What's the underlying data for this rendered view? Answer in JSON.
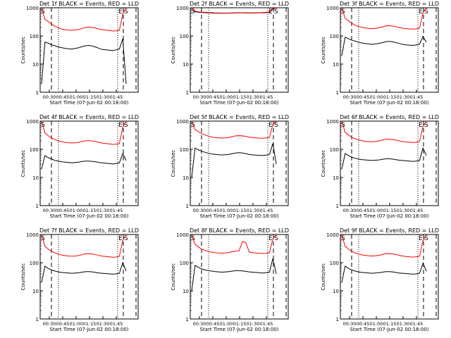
{
  "figure": {
    "panel_title_template": "Det {det} BLACK = Events, RED = LLD",
    "xlabel": "Start Time (07-Jun-02 00:18:00)",
    "ylabel": "Counts/sec"
  },
  "chart_data": [
    {
      "type": "line",
      "title": "Det 1f BLACK = Events, RED = LLD",
      "det": "1f",
      "xlabel": "Start Time (07-Jun-02 00:18:00)",
      "ylabel": "Counts/sec",
      "yscale": "log",
      "ylim": [
        1,
        1000
      ],
      "xticks": [
        "00:30",
        "00:45",
        "01:00",
        "01:15",
        "01:30",
        "01:45"
      ],
      "yticks": [
        "1",
        "10",
        "100",
        "1000"
      ],
      "markers": [
        {
          "label": "S",
          "pos": "left"
        },
        {
          "label": "E",
          "pos": "right"
        },
        {
          "label": "S",
          "pos": "right"
        }
      ],
      "series": [
        {
          "name": "Events",
          "color": "#000000",
          "values": [
            2,
            60,
            55,
            48,
            45,
            40,
            38,
            36,
            35,
            34,
            36,
            38,
            42,
            45,
            46,
            44,
            40,
            36,
            33,
            32,
            31,
            30,
            32,
            34,
            80,
            2
          ]
        },
        {
          "name": "LLD",
          "color": "#ff0000",
          "values": [
            1000,
            380,
            320,
            260,
            220,
            190,
            175,
            165,
            160,
            158,
            162,
            170,
            185,
            200,
            205,
            200,
            190,
            175,
            165,
            160,
            155,
            150,
            152,
            160,
            600,
            1000
          ]
        }
      ]
    },
    {
      "type": "line",
      "title": "Det 2f BLACK = Events, RED = LLD",
      "det": "2f",
      "xlabel": "Start Time (07-Jun-02 00:18:00)",
      "ylabel": "Counts/sec",
      "yscale": "log",
      "ylim": [
        1,
        1000
      ],
      "xticks": [
        "00:30",
        "00:45",
        "01:00",
        "01:15",
        "01:30",
        "01:45"
      ],
      "yticks": [
        "1",
        "10",
        "100",
        "1000"
      ],
      "markers": [
        {
          "label": "S",
          "pos": "left"
        },
        {
          "label": "E",
          "pos": "right"
        },
        {
          "label": "S",
          "pos": "right"
        }
      ],
      "series": [
        {
          "name": "Events",
          "color": "#000000",
          "values": [
            1000,
            720,
            690,
            680,
            670,
            660,
            650,
            645,
            640,
            640,
            640,
            645,
            650,
            655,
            660,
            660,
            655,
            650,
            650,
            655,
            660,
            665,
            670,
            680,
            900,
            1000
          ]
        },
        {
          "name": "LLD",
          "color": "#ff0000",
          "values": [
            1000,
            760,
            720,
            700,
            690,
            680,
            670,
            660,
            655,
            650,
            650,
            655,
            660,
            665,
            670,
            670,
            665,
            660,
            660,
            665,
            670,
            680,
            690,
            710,
            950,
            1000
          ]
        }
      ]
    },
    {
      "type": "line",
      "title": "Det 3f BLACK = Events, RED = LLD",
      "det": "3f",
      "xlabel": "Start Time (07-Jun-02 00:18:00)",
      "ylabel": "Counts/sec",
      "yscale": "log",
      "ylim": [
        1,
        1000
      ],
      "xticks": [
        "00:30",
        "00:45",
        "01:00",
        "01:15",
        "01:30",
        "01:45"
      ],
      "yticks": [
        "1",
        "10",
        "100",
        "1000"
      ],
      "markers": [
        {
          "label": "S",
          "pos": "left"
        },
        {
          "label": "E",
          "pos": "right"
        },
        {
          "label": "S",
          "pos": "right"
        }
      ],
      "series": [
        {
          "name": "Events",
          "color": "#000000",
          "values": [
            20,
            90,
            80,
            70,
            65,
            60,
            56,
            54,
            52,
            50,
            52,
            54,
            58,
            62,
            64,
            62,
            58,
            54,
            50,
            48,
            47,
            46,
            48,
            52,
            95,
            60
          ]
        },
        {
          "name": "LLD",
          "color": "#ff0000",
          "values": [
            1000,
            420,
            340,
            280,
            240,
            215,
            200,
            190,
            185,
            182,
            186,
            195,
            210,
            225,
            230,
            225,
            212,
            198,
            188,
            182,
            178,
            175,
            178,
            190,
            650,
            1000
          ]
        }
      ]
    },
    {
      "type": "line",
      "title": "Det 4f BLACK = Events, RED = LLD",
      "det": "4f",
      "xlabel": "Start Time (07-Jun-02 00:18:00)",
      "ylabel": "Counts/sec",
      "yscale": "log",
      "ylim": [
        1,
        1000
      ],
      "xticks": [
        "00:30",
        "00:45",
        "01:00",
        "01:15",
        "01:30",
        "01:45"
      ],
      "yticks": [
        "1",
        "10",
        "100",
        "1000"
      ],
      "markers": [
        {
          "label": "S",
          "pos": "left"
        },
        {
          "label": "E",
          "pos": "right"
        },
        {
          "label": "S",
          "pos": "right"
        }
      ],
      "series": [
        {
          "name": "Events",
          "color": "#000000",
          "values": [
            20,
            60,
            50,
            45,
            40,
            38,
            36,
            35,
            34,
            33,
            34,
            35,
            37,
            38,
            38,
            37,
            36,
            34,
            33,
            32,
            31,
            30,
            31,
            33,
            70,
            40
          ]
        },
        {
          "name": "LLD",
          "color": "#ff0000",
          "values": [
            1000,
            380,
            300,
            250,
            220,
            200,
            185,
            175,
            170,
            168,
            170,
            178,
            190,
            200,
            202,
            198,
            188,
            175,
            166,
            160,
            155,
            150,
            152,
            160,
            600,
            1000
          ]
        }
      ]
    },
    {
      "type": "line",
      "title": "Det 5f BLACK = Events, RED = LLD",
      "det": "5f",
      "xlabel": "Start Time (07-Jun-02 00:18:00)",
      "ylabel": "Counts/sec",
      "yscale": "log",
      "ylim": [
        1,
        1000
      ],
      "xticks": [
        "00:30",
        "00:45",
        "01:00",
        "01:15",
        "01:30",
        "01:45"
      ],
      "yticks": [
        "1",
        "10",
        "100",
        "1000"
      ],
      "markers": [
        {
          "label": "S",
          "pos": "left"
        },
        {
          "label": "E",
          "pos": "right"
        },
        {
          "label": "S",
          "pos": "right"
        }
      ],
      "series": [
        {
          "name": "Events",
          "color": "#000000",
          "values": [
            10,
            110,
            95,
            85,
            78,
            72,
            68,
            66,
            64,
            63,
            64,
            66,
            70,
            74,
            76,
            74,
            70,
            66,
            63,
            62,
            61,
            60,
            62,
            66,
            160,
            30
          ]
        },
        {
          "name": "LLD",
          "color": "#ff0000",
          "values": [
            1000,
            500,
            420,
            360,
            320,
            290,
            270,
            260,
            255,
            252,
            256,
            265,
            280,
            300,
            305,
            300,
            285,
            270,
            260,
            255,
            250,
            248,
            252,
            265,
            750,
            1000
          ]
        }
      ]
    },
    {
      "type": "line",
      "title": "Det 6f BLACK = Events, RED = LLD",
      "det": "6f",
      "xlabel": "Start Time (07-Jun-02 00:18:00)",
      "ylabel": "Counts/sec",
      "yscale": "log",
      "ylim": [
        1,
        1000
      ],
      "xticks": [
        "00:30",
        "00:45",
        "01:00",
        "01:15",
        "01:30",
        "01:45"
      ],
      "yticks": [
        "1",
        "10",
        "100",
        "1000"
      ],
      "markers": [
        {
          "label": "S",
          "pos": "left"
        },
        {
          "label": "E",
          "pos": "right"
        },
        {
          "label": "S",
          "pos": "right"
        }
      ],
      "series": [
        {
          "name": "Events",
          "color": "#000000",
          "values": [
            20,
            70,
            60,
            52,
            48,
            45,
            43,
            42,
            41,
            40,
            41,
            42,
            44,
            46,
            46,
            45,
            43,
            41,
            40,
            39,
            38,
            37,
            38,
            40,
            110,
            60
          ]
        },
        {
          "name": "LLD",
          "color": "#ff0000",
          "values": [
            1000,
            400,
            320,
            265,
            235,
            215,
            200,
            192,
            188,
            186,
            190,
            198,
            212,
            225,
            228,
            224,
            212,
            198,
            188,
            182,
            178,
            175,
            178,
            190,
            640,
            1000
          ]
        }
      ]
    },
    {
      "type": "line",
      "title": "Det 7f BLACK = Events, RED = LLD",
      "det": "7f",
      "xlabel": "Start Time (07-Jun-02 00:18:00)",
      "ylabel": "Counts/sec",
      "yscale": "log",
      "ylim": [
        1,
        1000
      ],
      "xticks": [
        "00:30",
        "00:45",
        "01:00",
        "01:15",
        "01:30",
        "01:45"
      ],
      "yticks": [
        "1",
        "10",
        "100",
        "1000"
      ],
      "markers": [
        {
          "label": "S",
          "pos": "left"
        },
        {
          "label": "E",
          "pos": "right"
        },
        {
          "label": "S",
          "pos": "right"
        }
      ],
      "series": [
        {
          "name": "Events",
          "color": "#000000",
          "values": [
            20,
            75,
            62,
            55,
            50,
            47,
            45,
            44,
            43,
            42,
            43,
            44,
            46,
            48,
            48,
            47,
            45,
            43,
            42,
            41,
            40,
            39,
            40,
            42,
            100,
            50
          ]
        },
        {
          "name": "LLD",
          "color": "#ff0000",
          "values": [
            1000,
            380,
            300,
            250,
            220,
            200,
            185,
            178,
            172,
            170,
            172,
            180,
            192,
            205,
            208,
            204,
            192,
            180,
            170,
            165,
            160,
            156,
            158,
            168,
            620,
            1000
          ]
        }
      ]
    },
    {
      "type": "line",
      "title": "Det 8f BLACK = Events, RED = LLD",
      "det": "8f",
      "xlabel": "Start Time (07-Jun-02 00:18:00)",
      "ylabel": "Counts/sec",
      "yscale": "log",
      "ylim": [
        1,
        1000
      ],
      "xticks": [
        "00:30",
        "00:45",
        "01:00",
        "01:15",
        "01:30",
        "01:45"
      ],
      "yticks": [
        "1",
        "10",
        "100",
        "1000"
      ],
      "markers": [
        {
          "label": "S",
          "pos": "left"
        },
        {
          "label": "E",
          "pos": "right"
        },
        {
          "label": "S",
          "pos": "right"
        }
      ],
      "series": [
        {
          "name": "Events",
          "color": "#000000",
          "values": [
            10,
            80,
            68,
            60,
            55,
            52,
            50,
            48,
            47,
            46,
            47,
            48,
            50,
            52,
            52,
            51,
            49,
            47,
            46,
            45,
            44,
            43,
            44,
            46,
            140,
            40
          ]
        },
        {
          "name": "LLD",
          "color": "#ff0000",
          "values": [
            1000,
            450,
            360,
            300,
            270,
            250,
            235,
            225,
            220,
            218,
            222,
            230,
            245,
            260,
            262,
            560,
            520,
            240,
            228,
            220,
            215,
            212,
            215,
            228,
            700,
            1000
          ]
        }
      ]
    },
    {
      "type": "line",
      "title": "Det 9f BLACK = Events, RED = LLD",
      "det": "9f",
      "xlabel": "Start Time (07-Jun-02 00:18:00)",
      "ylabel": "Counts/sec",
      "yscale": "log",
      "ylim": [
        1,
        1000
      ],
      "xticks": [
        "00:30",
        "00:45",
        "01:00",
        "01:15",
        "01:30",
        "01:45"
      ],
      "yticks": [
        "1",
        "10",
        "100",
        "1000"
      ],
      "markers": [
        {
          "label": "S",
          "pos": "left"
        },
        {
          "label": "E",
          "pos": "right"
        },
        {
          "label": "S",
          "pos": "right"
        }
      ],
      "series": [
        {
          "name": "Events",
          "color": "#000000",
          "values": [
            20,
            75,
            62,
            55,
            50,
            47,
            45,
            44,
            43,
            42,
            43,
            44,
            46,
            48,
            48,
            47,
            45,
            43,
            42,
            41,
            40,
            39,
            40,
            42,
            95,
            50
          ]
        },
        {
          "name": "LLD",
          "color": "#ff0000",
          "values": [
            1000,
            380,
            300,
            250,
            222,
            202,
            188,
            180,
            175,
            172,
            175,
            182,
            195,
            208,
            210,
            206,
            195,
            182,
            172,
            166,
            162,
            158,
            160,
            170,
            600,
            1000
          ]
        }
      ]
    }
  ]
}
